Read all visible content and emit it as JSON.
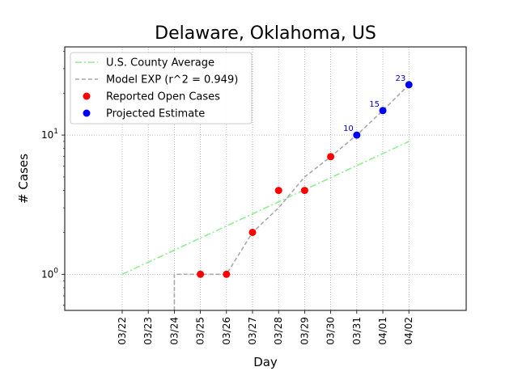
{
  "chart_data": {
    "type": "line",
    "title": "Delaware, Oklahoma, US",
    "xlabel": "Day",
    "ylabel": "# Cases",
    "yscale": "log",
    "ylim": [
      0.55,
      43
    ],
    "grid": true,
    "legend_position": "top-left",
    "categories": [
      "03/22",
      "03/23",
      "03/24",
      "03/25",
      "03/26",
      "03/27",
      "03/28",
      "03/29",
      "03/30",
      "03/31",
      "04/01",
      "04/02"
    ],
    "y_ticks": [
      {
        "value": 1,
        "base": "10",
        "exp": "0"
      },
      {
        "value": 10,
        "base": "10",
        "exp": "1"
      }
    ],
    "series": [
      {
        "name": "U.S. County Average",
        "style": "dashdot",
        "color": "#90ee90",
        "points": [
          {
            "x": "03/22",
            "y": 1.0
          },
          {
            "x": "04/02",
            "y": 9.0
          }
        ]
      },
      {
        "name": "Model EXP (r^2 = 0.949)",
        "style": "dashed",
        "color": "#a9a9a9",
        "points": [
          {
            "x": "03/24",
            "y": 0.5
          },
          {
            "x": "03/24",
            "y": 1.0
          },
          {
            "x": "03/25",
            "y": 1.0
          },
          {
            "x": "03/26",
            "y": 1.0
          },
          {
            "x": "03/27",
            "y": 2.0
          },
          {
            "x": "03/28",
            "y": 3.0
          },
          {
            "x": "03/29",
            "y": 5.0
          },
          {
            "x": "03/30",
            "y": 7.0
          },
          {
            "x": "03/31",
            "y": 10.0
          },
          {
            "x": "04/01",
            "y": 15.0
          },
          {
            "x": "04/02",
            "y": 23.0
          }
        ]
      },
      {
        "name": "Reported Open Cases",
        "style": "markers",
        "color": "#ff0000",
        "points": [
          {
            "x": "03/25",
            "y": 1
          },
          {
            "x": "03/26",
            "y": 1
          },
          {
            "x": "03/27",
            "y": 2
          },
          {
            "x": "03/28",
            "y": 4
          },
          {
            "x": "03/29",
            "y": 4
          },
          {
            "x": "03/30",
            "y": 7
          }
        ]
      },
      {
        "name": "Projected Estimate",
        "style": "markers",
        "color": "#0000ff",
        "points": [
          {
            "x": "03/31",
            "y": 10,
            "label": "10"
          },
          {
            "x": "04/01",
            "y": 15,
            "label": "15"
          },
          {
            "x": "04/02",
            "y": 23,
            "label": "23"
          }
        ]
      }
    ]
  }
}
